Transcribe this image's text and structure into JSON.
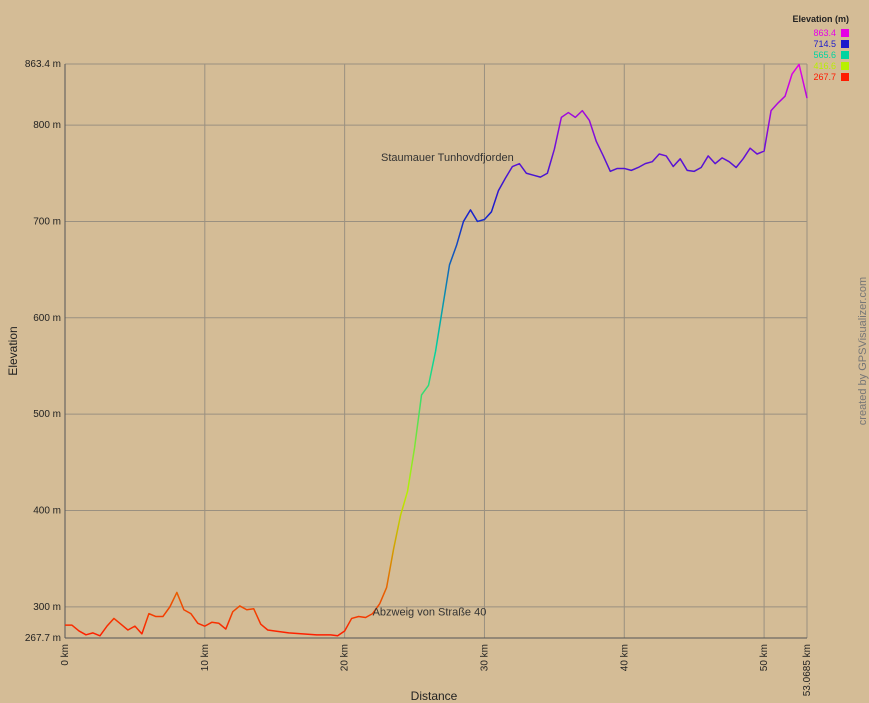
{
  "chart_data": {
    "type": "line",
    "x_label": "Distance",
    "y_label": "Elevation",
    "credit": "created by GPSVisualizer.com",
    "xlim": [
      0,
      53.0685
    ],
    "ylim": [
      267.7,
      863.4
    ],
    "xticks": [
      {
        "value": 0,
        "label": "0 km"
      },
      {
        "value": 10,
        "label": "10 km"
      },
      {
        "value": 20,
        "label": "20 km"
      },
      {
        "value": 30,
        "label": "30 km"
      },
      {
        "value": 40,
        "label": "40 km"
      },
      {
        "value": 50,
        "label": "50 km"
      },
      {
        "value": 53.0685,
        "label": "53.0685 km"
      }
    ],
    "yticks": [
      {
        "value": 267.7,
        "label": "267.7 m"
      },
      {
        "value": 300,
        "label": "300 m"
      },
      {
        "value": 400,
        "label": "400 m"
      },
      {
        "value": 500,
        "label": "500 m"
      },
      {
        "value": 600,
        "label": "600 m"
      },
      {
        "value": 700,
        "label": "700 m"
      },
      {
        "value": 800,
        "label": "800 m"
      },
      {
        "value": 863.4,
        "label": "863.4 m"
      }
    ],
    "grid": true,
    "color_scale": {
      "title": "Elevation (m)",
      "stops": [
        {
          "value": 863.4,
          "color": "#e600e6"
        },
        {
          "value": 714.5,
          "color": "#1a1acc"
        },
        {
          "value": 565.6,
          "color": "#00d4a0"
        },
        {
          "value": 416.6,
          "color": "#b8f000"
        },
        {
          "value": 267.7,
          "color": "#ff1a00"
        }
      ]
    },
    "annotations": [
      {
        "text": "Staumauer Tunhovdfjorden",
        "x": 22.6,
        "y": 767
      },
      {
        "text": "Abzweig von Straße 40",
        "x": 22.0,
        "y": 295
      }
    ],
    "x": [
      0,
      0.5,
      1,
      1.5,
      2,
      2.5,
      3,
      3.5,
      4,
      4.5,
      5,
      5.5,
      6,
      6.5,
      7,
      7.5,
      8,
      8.5,
      9,
      9.5,
      10,
      10.5,
      11,
      11.5,
      12,
      12.5,
      13,
      13.5,
      14,
      14.5,
      15,
      16,
      17,
      18,
      19,
      19.5,
      20,
      20.5,
      21,
      21.5,
      22,
      22.5,
      23,
      23.5,
      24,
      24.5,
      25,
      25.5,
      26,
      26.5,
      27,
      27.5,
      28,
      28.5,
      29,
      29.5,
      30,
      30.5,
      31,
      31.5,
      32,
      32.5,
      33,
      33.5,
      34,
      34.5,
      35,
      35.5,
      36,
      36.5,
      37,
      37.5,
      38,
      38.5,
      39,
      39.5,
      40,
      40.5,
      41,
      41.5,
      42,
      42.5,
      43,
      43.5,
      44,
      44.5,
      45,
      45.5,
      46,
      46.5,
      47,
      47.5,
      48,
      48.5,
      49,
      49.5,
      50,
      50.5,
      51,
      51.5,
      52,
      52.5,
      53.0685
    ],
    "series": [
      {
        "values": [
          281,
          281,
          275,
          271,
          273,
          270,
          280,
          288,
          282,
          276,
          280,
          272,
          293,
          290,
          290,
          300,
          315,
          297,
          293,
          283,
          280,
          284,
          283,
          277,
          295,
          301,
          297,
          298,
          282,
          276,
          275,
          273,
          272,
          271,
          271,
          270,
          275,
          288,
          290,
          289,
          293,
          303,
          320,
          360,
          395,
          420,
          465,
          520,
          530,
          565,
          610,
          655,
          675,
          700,
          712,
          700,
          702,
          710,
          732,
          745,
          757,
          760,
          750,
          748,
          746,
          750,
          775,
          808,
          813,
          808,
          815,
          805,
          783,
          768,
          752,
          755,
          755,
          753,
          756,
          760,
          762,
          770,
          768,
          757,
          765,
          753,
          752,
          756,
          768,
          760,
          766,
          762,
          756,
          765,
          776,
          770,
          773,
          815,
          823,
          830,
          853,
          863,
          828
        ]
      }
    ]
  }
}
